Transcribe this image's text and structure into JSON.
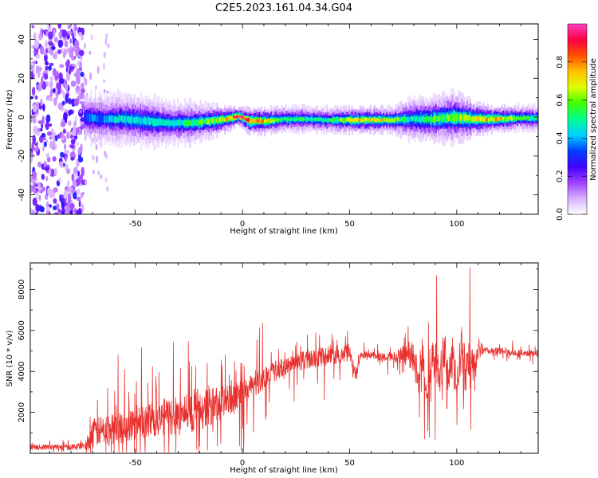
{
  "figure_title": "C2E5.2023.161.04.34.G04",
  "chart_data": [
    {
      "type": "heatmap",
      "xlabel": "Height of straight line (km)",
      "ylabel": "Frequency (Hz)",
      "xlim": [
        -99,
        138
      ],
      "ylim": [
        -50,
        48
      ],
      "xticks": [
        -50,
        0,
        50,
        100
      ],
      "yticks": [
        -40,
        -20,
        0,
        20,
        40
      ],
      "xtick_labels": [
        "-50",
        "0",
        "50",
        "100"
      ],
      "ytick_labels": [
        "-40",
        "-20",
        "0",
        "20",
        "40"
      ],
      "grid": false,
      "colorbar": {
        "label": "Normalized spectral amplitude",
        "range": [
          0,
          1
        ],
        "ticks": [
          0.0,
          0.2,
          0.4,
          0.6,
          0.8
        ],
        "tick_labels": [
          "0.0",
          "0.2",
          "0.4",
          "0.6",
          "0.8"
        ],
        "colormap": [
          "#ffffff",
          "#d8b0ff",
          "#a040ff",
          "#4000ff",
          "#0040ff",
          "#00d0ff",
          "#00ff90",
          "#40ff00",
          "#e0ff00",
          "#ffc000",
          "#ff5000",
          "#ff0040",
          "#ff40c0"
        ]
      },
      "noise_region": {
        "x_range": [
          -99,
          -74
        ],
        "y_range": [
          -50,
          48
        ]
      },
      "ridge": [
        {
          "x": -74,
          "freq": 0,
          "width": 3,
          "amp": 0.35
        },
        {
          "x": -65,
          "freq": -1,
          "width": 3,
          "amp": 0.38
        },
        {
          "x": -55,
          "freq": -1,
          "width": 3,
          "amp": 0.45
        },
        {
          "x": -45,
          "freq": -2,
          "width": 3,
          "amp": 0.45
        },
        {
          "x": -35,
          "freq": -3,
          "width": 2.5,
          "amp": 0.45
        },
        {
          "x": -25,
          "freq": -3,
          "width": 2.5,
          "amp": 0.5
        },
        {
          "x": -15,
          "freq": -2,
          "width": 2,
          "amp": 0.6
        },
        {
          "x": -8,
          "freq": -1,
          "width": 1.5,
          "amp": 0.7
        },
        {
          "x": -2,
          "freq": 0.5,
          "width": 1,
          "amp": 0.95
        },
        {
          "x": 3,
          "freq": -2,
          "width": 1.5,
          "amp": 0.8
        },
        {
          "x": 10,
          "freq": -2,
          "width": 1.5,
          "amp": 0.75
        },
        {
          "x": 20,
          "freq": -1,
          "width": 1.5,
          "amp": 0.5
        },
        {
          "x": 30,
          "freq": -1,
          "width": 1.5,
          "amp": 0.5
        },
        {
          "x": 40,
          "freq": -1.5,
          "width": 1.5,
          "amp": 0.5
        },
        {
          "x": 50,
          "freq": -1.5,
          "width": 1.5,
          "amp": 0.7
        },
        {
          "x": 60,
          "freq": -1.5,
          "width": 1.5,
          "amp": 0.7
        },
        {
          "x": 70,
          "freq": -1.5,
          "width": 1.5,
          "amp": 0.65
        },
        {
          "x": 78,
          "freq": -1,
          "width": 2.5,
          "amp": 0.45
        },
        {
          "x": 88,
          "freq": -1,
          "width": 2.5,
          "amp": 0.55
        },
        {
          "x": 98,
          "freq": 0,
          "width": 3,
          "amp": 0.6
        },
        {
          "x": 108,
          "freq": -1,
          "width": 2,
          "amp": 0.7
        },
        {
          "x": 118,
          "freq": -1,
          "width": 1.5,
          "amp": 0.75
        },
        {
          "x": 128,
          "freq": -0.5,
          "width": 1.5,
          "amp": 0.55
        },
        {
          "x": 138,
          "freq": -0.5,
          "width": 1.5,
          "amp": 0.5
        }
      ]
    },
    {
      "type": "line",
      "xlabel": "Height of straight line (km)",
      "ylabel": "SNR (10 * v/v)",
      "xlim": [
        -99,
        138
      ],
      "ylim": [
        0,
        9300
      ],
      "xticks": [
        -50,
        0,
        50,
        100
      ],
      "yticks": [
        2000,
        4000,
        6000,
        8000
      ],
      "xtick_labels": [
        "-50",
        "0",
        "50",
        "100"
      ],
      "ytick_labels": [
        "2000",
        "4000",
        "6000",
        "8000"
      ],
      "grid": false,
      "color": "#e8312e",
      "envelope": {
        "x": [
          -99,
          -90,
          -80,
          -73,
          -70,
          -65,
          -60,
          -55,
          -50,
          -45,
          -40,
          -35,
          -30,
          -25,
          -20,
          -15,
          -10,
          -5,
          0,
          5,
          10,
          15,
          20,
          25,
          30,
          35,
          40,
          45,
          50,
          53,
          55,
          60,
          65,
          70,
          75,
          78,
          80,
          82,
          84,
          86,
          88,
          90,
          92,
          94,
          96,
          98,
          100,
          102,
          104,
          106,
          108,
          110,
          115,
          120,
          125,
          130,
          138
        ],
        "y": [
          300,
          300,
          300,
          400,
          1000,
          1100,
          1200,
          1300,
          1500,
          1600,
          1700,
          1800,
          1900,
          2000,
          2100,
          2300,
          2400,
          2600,
          2900,
          3300,
          3700,
          4000,
          4200,
          4400,
          4600,
          4700,
          4800,
          4850,
          4900,
          3700,
          4800,
          4800,
          4700,
          4700,
          4800,
          4800,
          4600,
          3500,
          4900,
          3000,
          4200,
          4800,
          3500,
          5200,
          3800,
          4600,
          3000,
          5300,
          4000,
          4900,
          4100,
          5000,
          5000,
          5000,
          4900,
          4900,
          4900
        ]
      },
      "noise_amplitude": {
        "x": [
          -99,
          -74,
          -70,
          -40,
          -20,
          0,
          20,
          40,
          50,
          55,
          70,
          75,
          80,
          105,
          112,
          138
        ],
        "y": [
          120,
          150,
          700,
          900,
          1000,
          700,
          450,
          500,
          400,
          150,
          200,
          450,
          900,
          1100,
          180,
          150
        ]
      }
    }
  ]
}
